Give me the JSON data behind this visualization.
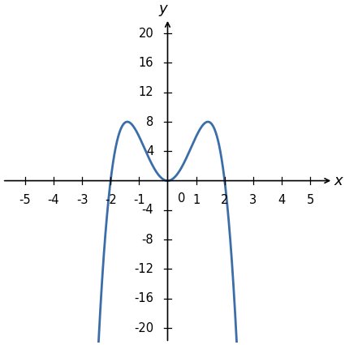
{
  "x_start": -2.65,
  "x_end": 2.65,
  "xlim": [
    -5.8,
    5.8
  ],
  "ylim": [
    -22,
    22
  ],
  "ylim_display": [
    -20,
    20
  ],
  "xticks": [
    -5,
    -4,
    -3,
    -2,
    -1,
    1,
    2,
    3,
    4,
    5
  ],
  "yticks": [
    -20,
    -16,
    -12,
    -8,
    -4,
    4,
    8,
    12,
    16,
    20
  ],
  "line_color": "#3b6ea8",
  "line_width": 2.0,
  "xlabel": "x",
  "ylabel": "y",
  "background_color": "#ffffff",
  "tick_fontsize": 10.5,
  "label_fontsize": 13,
  "axis_lw": 1.2
}
